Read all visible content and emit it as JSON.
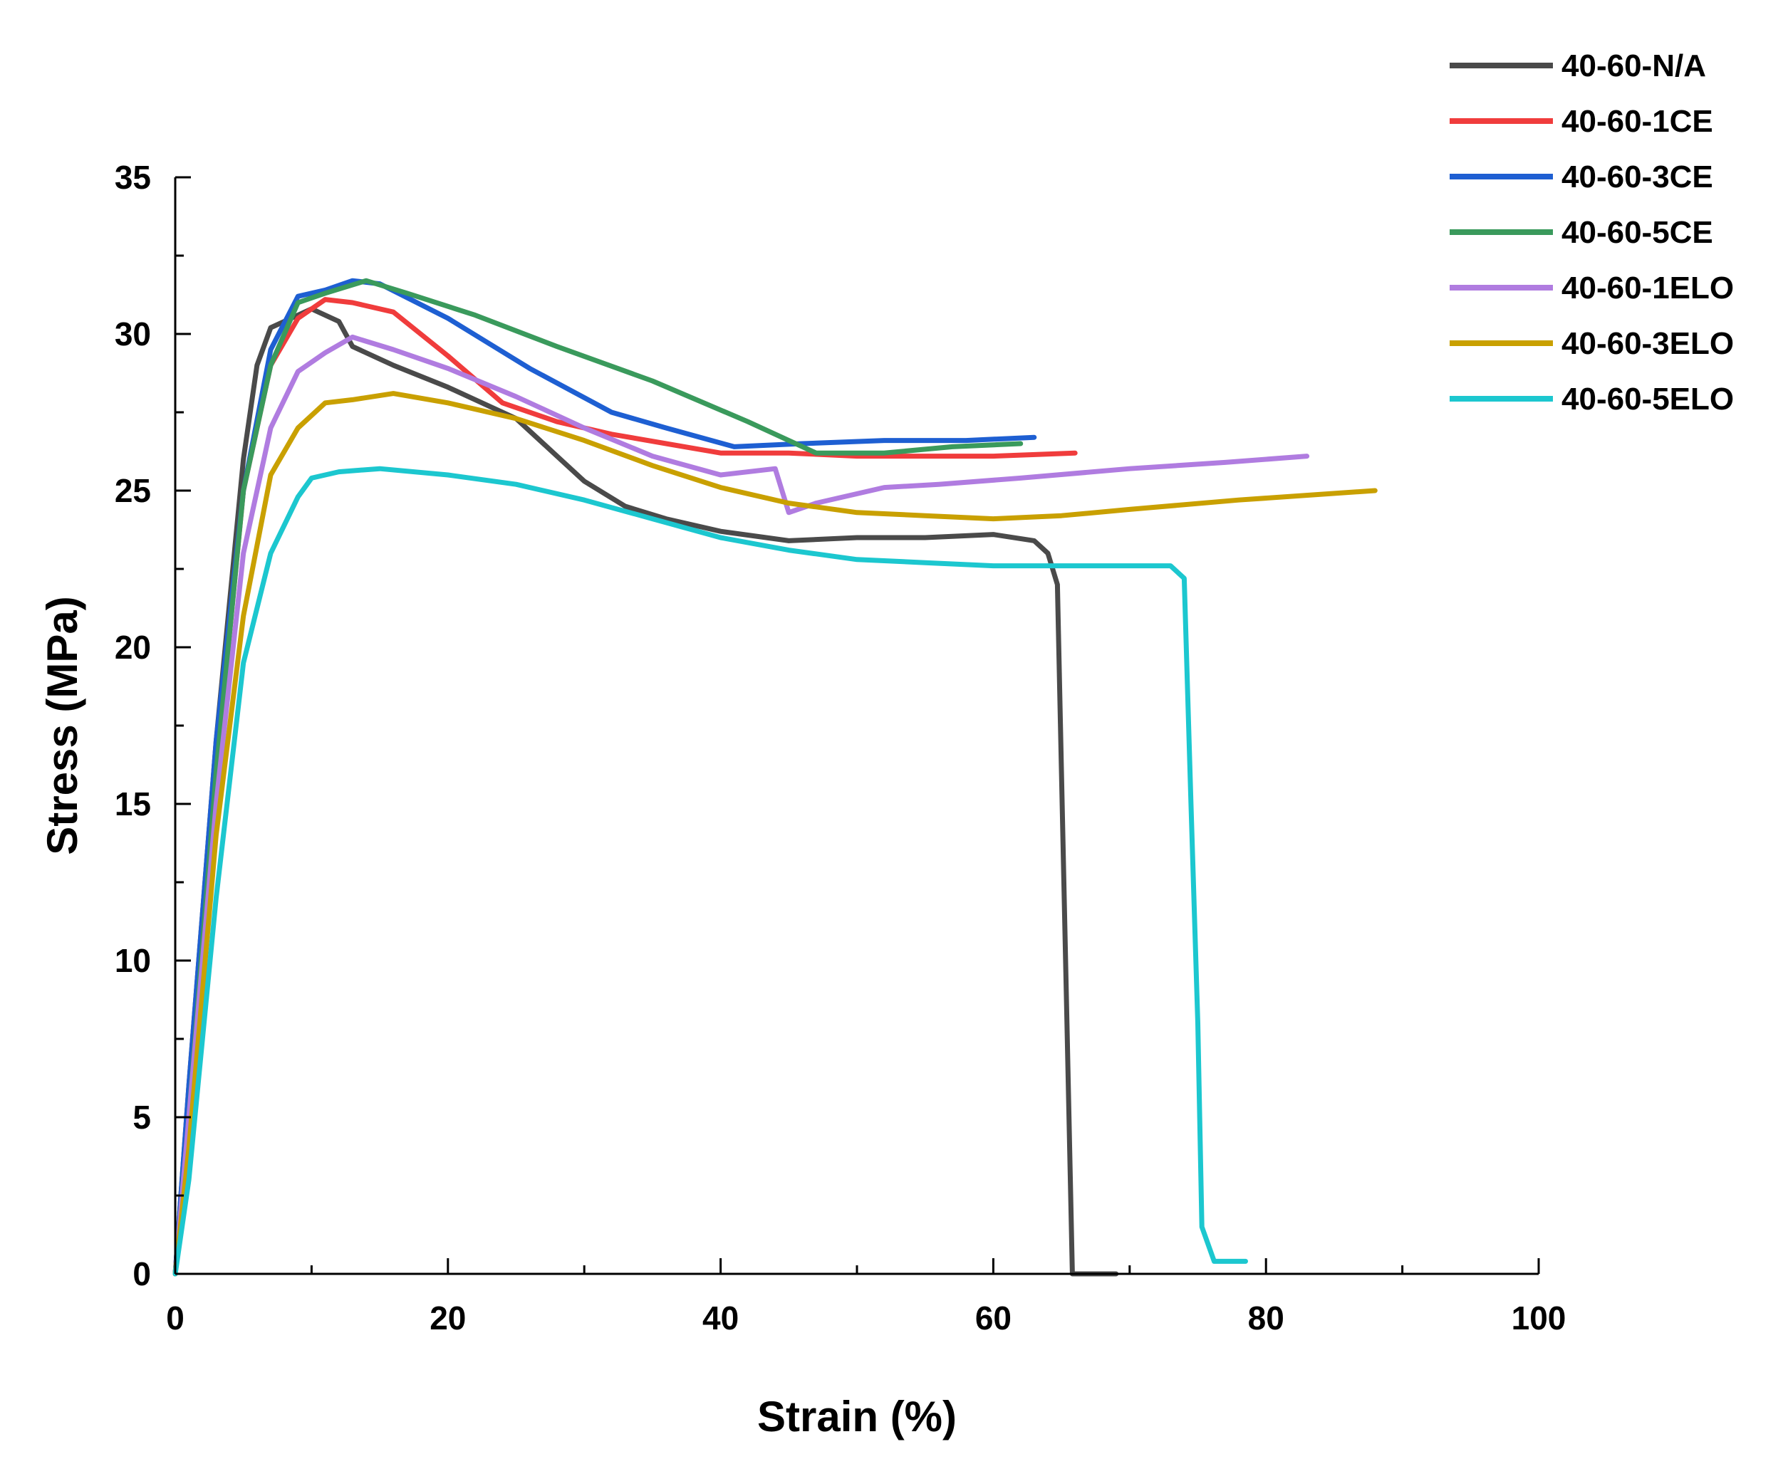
{
  "chart_data": {
    "type": "line",
    "xlabel": "Strain (%)",
    "ylabel": "Stress (MPa)",
    "xlim": [
      0,
      100
    ],
    "ylim": [
      0,
      35
    ],
    "x_ticks": [
      0,
      20,
      40,
      60,
      80,
      100
    ],
    "y_ticks": [
      0,
      5,
      10,
      15,
      20,
      25,
      30,
      35
    ],
    "grid": false,
    "legend_position": "top-right",
    "series": [
      {
        "name": "40-60-N/A",
        "color": "#4a4a4a",
        "points": [
          [
            0,
            0
          ],
          [
            1,
            6
          ],
          [
            3,
            17
          ],
          [
            5,
            26
          ],
          [
            6,
            29
          ],
          [
            7,
            30.2
          ],
          [
            8,
            30.4
          ],
          [
            10,
            30.8
          ],
          [
            12,
            30.4
          ],
          [
            13,
            29.6
          ],
          [
            16,
            29
          ],
          [
            20,
            28.3
          ],
          [
            25,
            27.3
          ],
          [
            27,
            26.5
          ],
          [
            30,
            25.3
          ],
          [
            33,
            24.5
          ],
          [
            36,
            24.1
          ],
          [
            40,
            23.7
          ],
          [
            45,
            23.4
          ],
          [
            50,
            23.5
          ],
          [
            55,
            23.5
          ],
          [
            60,
            23.6
          ],
          [
            63,
            23.4
          ],
          [
            64,
            23
          ],
          [
            64.7,
            22
          ],
          [
            65,
            16
          ],
          [
            65.4,
            8
          ],
          [
            65.8,
            0
          ],
          [
            69,
            0
          ]
        ]
      },
      {
        "name": "40-60-1CE",
        "color": "#f03c3c",
        "points": [
          [
            0,
            0
          ],
          [
            1,
            5
          ],
          [
            3,
            16
          ],
          [
            5,
            25
          ],
          [
            7,
            29
          ],
          [
            9,
            30.5
          ],
          [
            11,
            31.1
          ],
          [
            13,
            31
          ],
          [
            16,
            30.7
          ],
          [
            20,
            29.3
          ],
          [
            24,
            27.8
          ],
          [
            28,
            27.2
          ],
          [
            32,
            26.8
          ],
          [
            36,
            26.5
          ],
          [
            40,
            26.2
          ],
          [
            45,
            26.2
          ],
          [
            50,
            26.1
          ],
          [
            55,
            26.1
          ],
          [
            60,
            26.1
          ],
          [
            66,
            26.2
          ]
        ]
      },
      {
        "name": "40-60-3CE",
        "color": "#1e5fd2",
        "points": [
          [
            0,
            0
          ],
          [
            1,
            6
          ],
          [
            3,
            17
          ],
          [
            5,
            25
          ],
          [
            7,
            29.5
          ],
          [
            9,
            31.2
          ],
          [
            11,
            31.4
          ],
          [
            13,
            31.7
          ],
          [
            15,
            31.6
          ],
          [
            20,
            30.5
          ],
          [
            26,
            28.9
          ],
          [
            32,
            27.5
          ],
          [
            36,
            27
          ],
          [
            41,
            26.4
          ],
          [
            46,
            26.5
          ],
          [
            52,
            26.6
          ],
          [
            58,
            26.6
          ],
          [
            63,
            26.7
          ]
        ]
      },
      {
        "name": "40-60-5CE",
        "color": "#3a9a5c",
        "points": [
          [
            0,
            0
          ],
          [
            1,
            5
          ],
          [
            3,
            16
          ],
          [
            5,
            25
          ],
          [
            7,
            29
          ],
          [
            9,
            31
          ],
          [
            11,
            31.3
          ],
          [
            14,
            31.7
          ],
          [
            17,
            31.3
          ],
          [
            22,
            30.6
          ],
          [
            28,
            29.6
          ],
          [
            35,
            28.5
          ],
          [
            42,
            27.2
          ],
          [
            47,
            26.2
          ],
          [
            52,
            26.2
          ],
          [
            57,
            26.4
          ],
          [
            62,
            26.5
          ]
        ]
      },
      {
        "name": "40-60-1ELO",
        "color": "#b07ce0",
        "points": [
          [
            0,
            0
          ],
          [
            1,
            5
          ],
          [
            3,
            15
          ],
          [
            5,
            23
          ],
          [
            7,
            27
          ],
          [
            9,
            28.8
          ],
          [
            11,
            29.4
          ],
          [
            13,
            29.9
          ],
          [
            16,
            29.5
          ],
          [
            20,
            28.9
          ],
          [
            25,
            28
          ],
          [
            30,
            27
          ],
          [
            35,
            26.1
          ],
          [
            40,
            25.5
          ],
          [
            44,
            25.7
          ],
          [
            45,
            24.3
          ],
          [
            47,
            24.6
          ],
          [
            52,
            25.1
          ],
          [
            56,
            25.2
          ],
          [
            62,
            25.4
          ],
          [
            70,
            25.7
          ],
          [
            77,
            25.9
          ],
          [
            83,
            26.1
          ]
        ]
      },
      {
        "name": "40-60-3ELO",
        "color": "#c9a000",
        "points": [
          [
            0,
            0
          ],
          [
            1,
            4
          ],
          [
            3,
            14
          ],
          [
            5,
            21
          ],
          [
            7,
            25.5
          ],
          [
            9,
            27
          ],
          [
            11,
            27.8
          ],
          [
            13,
            27.9
          ],
          [
            16,
            28.1
          ],
          [
            20,
            27.8
          ],
          [
            25,
            27.3
          ],
          [
            30,
            26.6
          ],
          [
            35,
            25.8
          ],
          [
            40,
            25.1
          ],
          [
            45,
            24.6
          ],
          [
            50,
            24.3
          ],
          [
            55,
            24.2
          ],
          [
            60,
            24.1
          ],
          [
            65,
            24.2
          ],
          [
            70,
            24.4
          ],
          [
            78,
            24.7
          ],
          [
            88,
            25
          ]
        ]
      },
      {
        "name": "40-60-5ELO",
        "color": "#1cc7cf",
        "points": [
          [
            0,
            0
          ],
          [
            1,
            3
          ],
          [
            3,
            12
          ],
          [
            5,
            19.5
          ],
          [
            7,
            23
          ],
          [
            9,
            24.8
          ],
          [
            10,
            25.4
          ],
          [
            12,
            25.6
          ],
          [
            15,
            25.7
          ],
          [
            20,
            25.5
          ],
          [
            25,
            25.2
          ],
          [
            30,
            24.7
          ],
          [
            35,
            24.1
          ],
          [
            40,
            23.5
          ],
          [
            45,
            23.1
          ],
          [
            50,
            22.8
          ],
          [
            55,
            22.7
          ],
          [
            60,
            22.6
          ],
          [
            65,
            22.6
          ],
          [
            70,
            22.6
          ],
          [
            73,
            22.6
          ],
          [
            74,
            22.2
          ],
          [
            74.5,
            15
          ],
          [
            75,
            8
          ],
          [
            75.3,
            1.5
          ],
          [
            76.2,
            0.4
          ],
          [
            78.5,
            0.4
          ]
        ]
      }
    ]
  }
}
